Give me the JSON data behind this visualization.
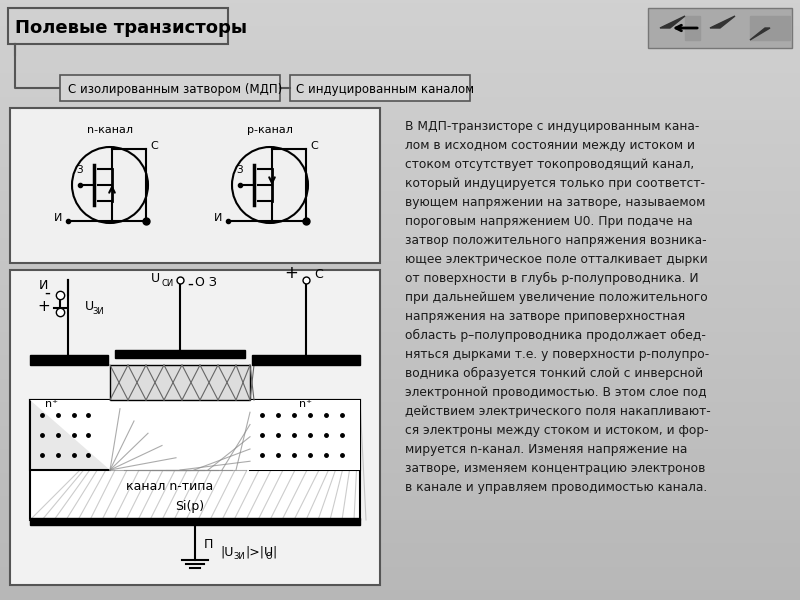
{
  "title": "Полевые транзисторы",
  "tab1": "С изолированным затвором (МДП)",
  "tab2": "С индуцированным каналом",
  "bg_color": "#c8c8c8",
  "panel_color": "#d8d8d8",
  "box_color": "#e0e0e0",
  "white": "#ffffff",
  "black": "#000000",
  "text_color": "#1a1a1a",
  "main_text": "В МДП-транзисторе с индуцированным кана-\nлом в исходном состоянии между истоком и\nстоком отсутствует токопроводящий канал,\nкоторый индуцируется только при соответст-\nвующем напряжении на затворе, называемом\nпороговым напряжением U0. При подаче на\nзатвор положительного напряжения возника-\nющее электрическое поле отталкивает дырки\nот поверхности в глубь p-полупроводника. И\nпри дальнейшем увеличение положительного\nнапряжения на затворе приповерхностная\nобласть p–полупроводника продолжает обед-\nняться дырками т.е. у поверхности p-полупро-\nводника образуется тонкий слой с инверсной\nэлектронной проводимостью. В этом слое под\nдействием электрического поля накапливают-\nся электроны между стоком и истоком, и фор-\nмируется n-канал. Изменяя напряжение на\nзатворе, изменяем концентрацию электронов\nв канале и управляем проводимостью канала."
}
